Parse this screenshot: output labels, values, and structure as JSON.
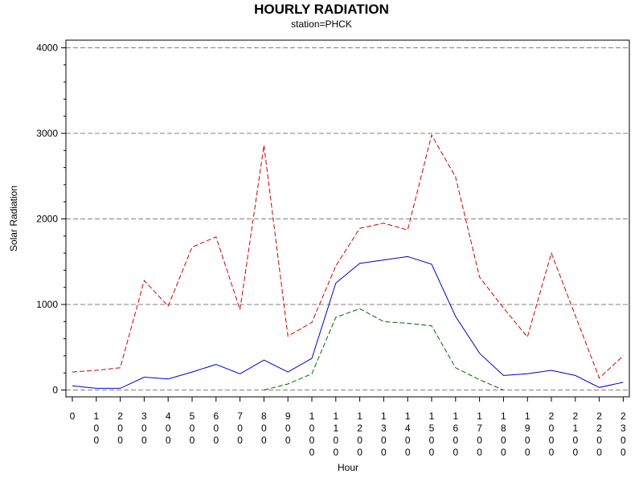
{
  "chart_data": {
    "type": "line",
    "title": "HOURLY RADIATION",
    "subtitle": "station=PHCK",
    "xlabel": "Hour",
    "ylabel": "Solar Radiation",
    "ylim": [
      -100,
      4100
    ],
    "yticks": [
      0,
      1000,
      2000,
      3000,
      4000
    ],
    "ytick_labels": [
      "0",
      "1000",
      "2000",
      "3000",
      "4000"
    ],
    "x": [
      0,
      100,
      200,
      300,
      400,
      500,
      600,
      700,
      800,
      900,
      1000,
      1100,
      1200,
      1300,
      1400,
      1500,
      1600,
      1700,
      1800,
      1900,
      2000,
      2100,
      2200,
      2300
    ],
    "xtick_labels": [
      "0",
      "100",
      "200",
      "300",
      "400",
      "500",
      "600",
      "700",
      "800",
      "900",
      "1000",
      "1100",
      "1200",
      "1300",
      "1400",
      "1500",
      "1600",
      "1700",
      "1800",
      "1900",
      "2000",
      "2100",
      "2200",
      "2300"
    ],
    "grid": "horizontal-dashed",
    "legend": "none",
    "series": [
      {
        "color": "#cc0000",
        "dash": "dashed",
        "values": [
          210,
          230,
          260,
          1280,
          980,
          1670,
          1790,
          940,
          2860,
          630,
          790,
          1450,
          1890,
          1950,
          1870,
          2980,
          2490,
          1320,
          960,
          620,
          1600,
          870,
          140,
          400
        ]
      },
      {
        "color": "#0000cc",
        "dash": "solid",
        "values": [
          50,
          20,
          20,
          150,
          130,
          210,
          300,
          190,
          350,
          210,
          370,
          1250,
          1480,
          1520,
          1560,
          1470,
          860,
          430,
          170,
          190,
          230,
          170,
          30,
          90
        ]
      },
      {
        "color": "#006600",
        "dash": "dashed",
        "values": [
          null,
          null,
          null,
          null,
          null,
          null,
          null,
          null,
          0,
          70,
          190,
          850,
          950,
          800,
          780,
          750,
          260,
          120,
          0,
          null,
          null,
          null,
          null,
          null
        ]
      }
    ]
  }
}
